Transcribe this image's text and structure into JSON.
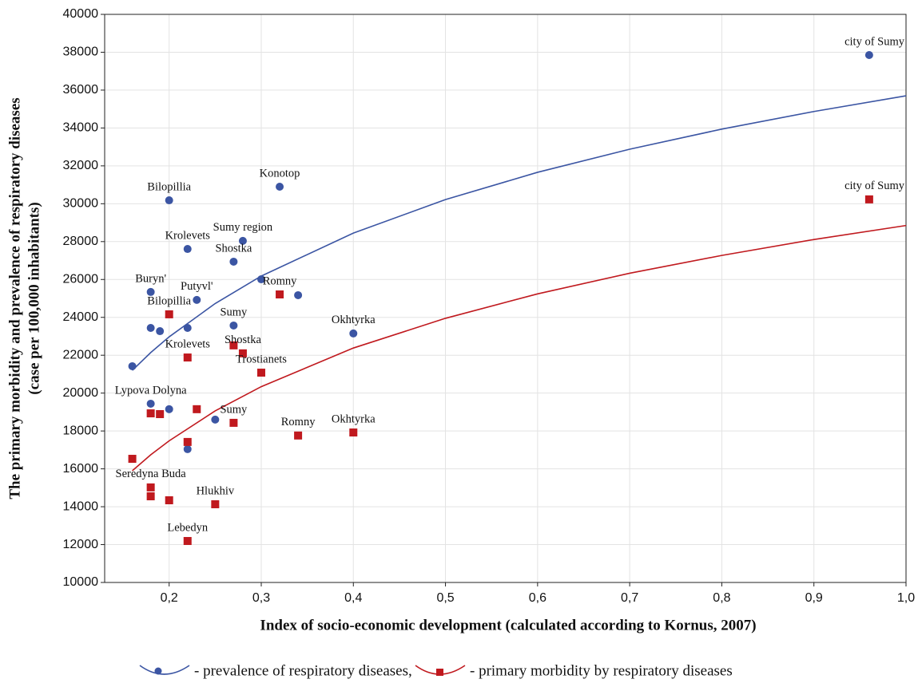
{
  "chart_data": {
    "type": "scatter",
    "x_label": "Index of socio-economic development (calculated according to Kornus, 2007)",
    "y_label": "The primary morbidity and prevalence of respiratory diseases",
    "y_label_2": "(case per 100,000 inhabitants)",
    "xlim": [
      0.13,
      1.0
    ],
    "ylim": [
      10000,
      40000
    ],
    "xticks": [
      {
        "value": 0.2,
        "label": "0,2"
      },
      {
        "value": 0.3,
        "label": "0,3"
      },
      {
        "value": 0.4,
        "label": "0,4"
      },
      {
        "value": 0.5,
        "label": "0,5"
      },
      {
        "value": 0.6,
        "label": "0,6"
      },
      {
        "value": 0.7,
        "label": "0,7"
      },
      {
        "value": 0.8,
        "label": "0,8"
      },
      {
        "value": 0.9,
        "label": "0,9"
      },
      {
        "value": 1.0,
        "label": "1,0"
      }
    ],
    "yticks": [
      10000,
      12000,
      14000,
      16000,
      18000,
      20000,
      22000,
      24000,
      26000,
      28000,
      30000,
      32000,
      34000,
      36000,
      38000,
      40000
    ],
    "grid": true,
    "legend": "bottom",
    "series": [
      {
        "name": "- prevalence of respiratory diseases,",
        "color": "#3b55a3",
        "marker": "circle",
        "x": [
          0.96,
          0.32,
          0.2,
          0.28,
          0.22,
          0.27,
          0.3,
          0.34,
          0.18,
          0.23,
          0.18,
          0.19,
          0.22,
          0.27,
          0.4,
          0.16,
          0.18,
          0.2,
          0.25,
          0.22
        ],
        "values": [
          37850,
          30900,
          30180,
          28040,
          27610,
          26940,
          26010,
          25170,
          25340,
          24920,
          23440,
          23270,
          23440,
          23570,
          23150,
          21420,
          19440,
          19150,
          18600,
          17040
        ],
        "point_labels": [
          "city of Sumy",
          "Konotop",
          "Bilopillia",
          "Sumy region",
          "Krolevets",
          "Shostka",
          null,
          null,
          "Buryn'",
          "Putyvl'",
          null,
          null,
          null,
          "Sumy",
          "Okhtyrka",
          null,
          "Lypova Dolyna",
          null,
          null,
          null
        ],
        "trend": {
          "x": [
            0.16,
            0.18,
            0.2,
            0.25,
            0.3,
            0.4,
            0.5,
            0.6,
            0.7,
            0.8,
            0.9,
            1.0
          ],
          "values": [
            21200,
            22140,
            22970,
            24730,
            26180,
            28450,
            30220,
            31660,
            32880,
            33940,
            34870,
            35700
          ]
        }
      },
      {
        "name": "- primary morbidity by respiratory diseases",
        "color": "#c0191e",
        "marker": "square",
        "x": [
          0.96,
          0.32,
          0.2,
          0.22,
          0.27,
          0.28,
          0.3,
          0.18,
          0.19,
          0.23,
          0.27,
          0.34,
          0.4,
          0.22,
          0.16,
          0.18,
          0.18,
          0.2,
          0.25,
          0.22
        ],
        "values": [
          30230,
          25210,
          24160,
          21880,
          22520,
          22100,
          21080,
          18930,
          18890,
          19150,
          18430,
          17760,
          17920,
          17420,
          16530,
          15020,
          14550,
          14340,
          14130,
          12190
        ],
        "point_labels": [
          "city of Sumy",
          "Romny",
          "Bilopillia",
          "Krolevets",
          null,
          "Shostka",
          "Trostianets",
          null,
          null,
          null,
          "Sumy",
          "Romny",
          "Okhtyrka",
          null,
          null,
          "Seredyna Buda",
          null,
          null,
          "Hlukhiv",
          "Lebedyn"
        ],
        "trend": {
          "x": [
            0.16,
            0.18,
            0.2,
            0.25,
            0.3,
            0.4,
            0.5,
            0.6,
            0.7,
            0.8,
            0.9,
            1.0
          ],
          "values": [
            15900,
            16740,
            17480,
            19060,
            20340,
            22380,
            23950,
            25240,
            26330,
            27270,
            28110,
            28850
          ]
        }
      }
    ]
  }
}
